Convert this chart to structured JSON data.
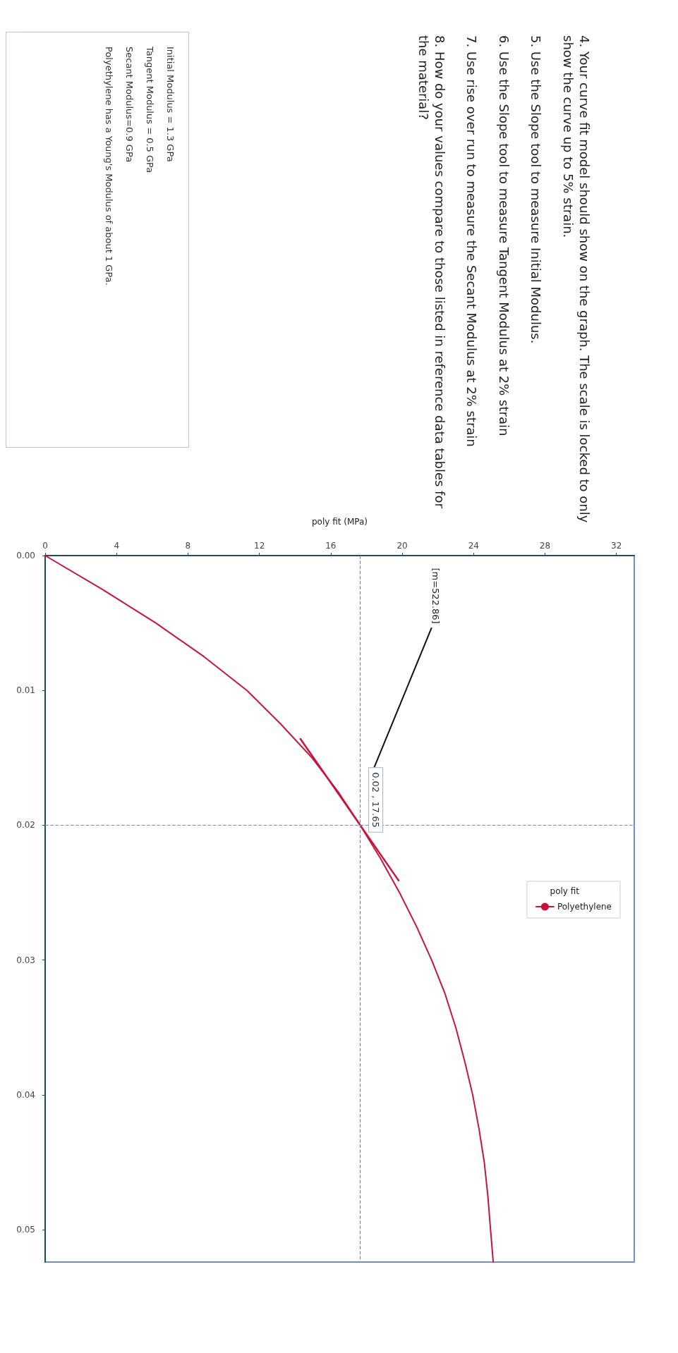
{
  "chart_data": {
    "type": "line",
    "xlabel": "poly fit (MPa)",
    "legend_title": "poly fit",
    "legend": "right",
    "xlim": [
      0,
      33
    ],
    "xticks": [
      0,
      4,
      8,
      12,
      16,
      20,
      24,
      28,
      32
    ],
    "ylim": [
      0.0524,
      0
    ],
    "yticks": [
      {
        "value": 0,
        "label": "0.00"
      },
      {
        "value": 0.01,
        "label": "0.01"
      },
      {
        "value": 0.02,
        "label": "0.02"
      },
      {
        "value": 0.03,
        "label": "0.03"
      },
      {
        "value": 0.04,
        "label": "0.04"
      },
      {
        "value": 0.05,
        "label": "0.05"
      }
    ],
    "x": [
      0,
      3.2,
      6.2,
      8.9,
      11.3,
      13.2,
      14.95,
      16.4,
      17.65,
      18.8,
      19.85,
      20.8,
      21.65,
      22.4,
      23.0,
      23.5,
      23.95,
      24.3,
      24.6,
      24.8,
      24.95,
      25.1
    ],
    "series": [
      {
        "name": "Polyethylene",
        "color": "#c8143c",
        "values": [
          0,
          0.0025,
          0.005,
          0.0075,
          0.01,
          0.0125,
          0.015,
          0.0175,
          0.02,
          0.0225,
          0.025,
          0.0275,
          0.03,
          0.0325,
          0.035,
          0.0375,
          0.04,
          0.0425,
          0.045,
          0.0475,
          0.05,
          0.0524
        ]
      },
      {
        "color": "#c8143c",
        "x": [
          14.3,
          19.8
        ],
        "values": [
          0.0136,
          0.0241
        ]
      }
    ],
    "ref_lines": [
      {
        "axis": "x",
        "value": 17.65,
        "line_style": "dashed",
        "color": "#7d8ba3"
      },
      {
        "axis": "y",
        "value": 0.02,
        "line_style": "dashed",
        "color": "#7d8ba3"
      }
    ],
    "annotations": [
      "4. Your curve fit model should show on the graph. The scale is locked to only show the curve up to 5% strain.",
      "5. Use the Slope tool to measure Initial Modulus.",
      "6. Use the Slope tool to measure Tangent Modulus at 2% strain",
      "7. Use rise over run to measure the Secant Modulus at 2% strain",
      "8. How do your values compare to those listed in reference data tables for the material?",
      "Initial Modulus = 1.3 GPa",
      "Tangent Modulus = 0.5 GPa",
      "Secant Modulus=0.9 GPa",
      "Polyethylene has a Young's Modulus of about 1 GPa.",
      "[m=522.86]",
      {
        "text": "0.02 , 17.65",
        "x": 17.65,
        "y": 0.02
      }
    ]
  }
}
